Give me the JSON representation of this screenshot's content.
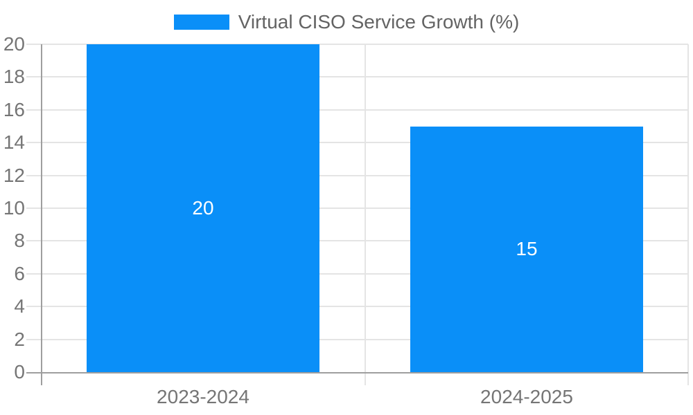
{
  "chart_data": {
    "type": "bar",
    "title": "",
    "legend": {
      "label": "Virtual CISO Service Growth (%)",
      "position": "top"
    },
    "categories": [
      "2023-2024",
      "2024-2025"
    ],
    "series": [
      {
        "name": "Virtual CISO Service Growth (%)",
        "values": [
          20,
          15
        ]
      }
    ],
    "data_labels": [
      "20",
      "15"
    ],
    "xlabel": "",
    "ylabel": "",
    "ylim": [
      0,
      20
    ],
    "yticks": [
      0,
      2,
      4,
      6,
      8,
      10,
      12,
      14,
      16,
      18,
      20
    ],
    "grid": true,
    "colors": {
      "bar": "#0a8ff8",
      "grid": "#e4e4e4",
      "axis": "#9e9e9e",
      "tick_label": "#757575",
      "category_label": "#757575",
      "legend_text": "#636363",
      "data_label": "#ffffff",
      "background": "#ffffff"
    }
  }
}
